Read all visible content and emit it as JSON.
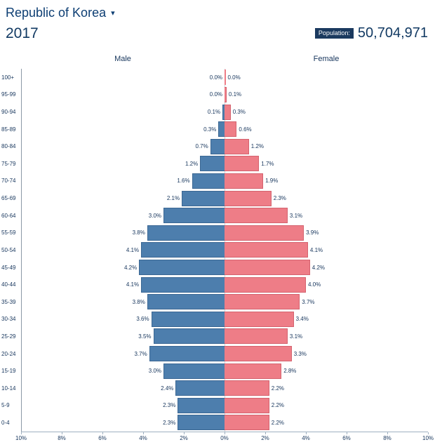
{
  "header": {
    "country": "Republic of Korea",
    "dropdown_caret": "▾",
    "year": "2017",
    "population_label": "Population:",
    "population_value": "50,704,971"
  },
  "chart_data": {
    "type": "bar",
    "subtype": "population-pyramid",
    "title": "Republic of Korea 2017 population pyramid",
    "male_label": "Male",
    "female_label": "Female",
    "age_groups": [
      "100+",
      "95-99",
      "90-94",
      "85-89",
      "80-84",
      "75-79",
      "70-74",
      "65-69",
      "60-64",
      "55-59",
      "50-54",
      "45-49",
      "40-44",
      "35-39",
      "30-34",
      "25-29",
      "20-24",
      "15-19",
      "10-14",
      "5-9",
      "0-4"
    ],
    "series": [
      {
        "name": "Male",
        "values": [
          0.0,
          0.0,
          0.1,
          0.3,
          0.7,
          1.2,
          1.6,
          2.1,
          3.0,
          3.8,
          4.1,
          4.2,
          4.1,
          3.8,
          3.6,
          3.5,
          3.7,
          3.0,
          2.4,
          2.3,
          2.3
        ]
      },
      {
        "name": "Female",
        "values": [
          0.0,
          0.1,
          0.3,
          0.6,
          1.2,
          1.7,
          1.9,
          2.3,
          3.1,
          3.9,
          4.1,
          4.2,
          4.0,
          3.7,
          3.4,
          3.1,
          3.3,
          2.8,
          2.2,
          2.2,
          2.2
        ]
      }
    ],
    "x_ticks": [
      "10%",
      "8%",
      "6%",
      "4%",
      "2%",
      "0%",
      "2%",
      "4%",
      "6%",
      "8%",
      "10%"
    ],
    "xlim_percent": 10,
    "legend_position": "top-inline",
    "grid": false,
    "colors": {
      "male": "#4d7ead",
      "female": "#ee7d87",
      "text": "#16355c"
    }
  }
}
